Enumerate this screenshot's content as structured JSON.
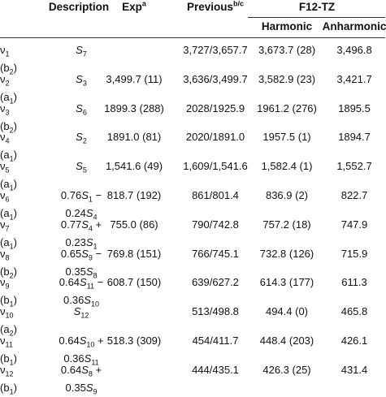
{
  "table": {
    "header": [
      [
        [
          [
            [
              "Description",
              ""
            ]
          ]
        ],
        [
          [
            [
              "Exp",
              ""
            ],
            [
              "a",
              "sup"
            ]
          ]
        ],
        [
          [
            [
              "Previous",
              ""
            ],
            [
              "b/c",
              "sup"
            ]
          ]
        ],
        [
          [
            [
              "F12-TZ",
              ""
            ]
          ]
        ]
      ],
      [
        [
          [
            [
              "Harmonic",
              ""
            ]
          ]
        ],
        [
          [
            [
              "Anharmonic",
              ""
            ]
          ]
        ]
      ]
    ],
    "rows": [
      [
        [
          [
            [
              "ν",
              ""
            ],
            [
              "1",
              "sub"
            ]
          ],
          [
            [
              "(b",
              ""
            ],
            [
              "2",
              "sub"
            ],
            [
              ")",
              ""
            ]
          ]
        ],
        [
          [
            [
              "S",
              "i"
            ],
            [
              "7",
              "sub"
            ]
          ]
        ],
        null,
        "3,727/3,657.7",
        "3,673.7 (28)",
        "3,496.8"
      ],
      [
        [
          [
            [
              "ν",
              ""
            ],
            [
              "2",
              "sub"
            ]
          ],
          [
            [
              "(a",
              ""
            ],
            [
              "1",
              "sub"
            ],
            [
              ")",
              ""
            ]
          ]
        ],
        [
          [
            [
              "S",
              "i"
            ],
            [
              "3",
              "sub"
            ]
          ]
        ],
        "3,499.7 (11)",
        "3,636/3,499.7",
        "3,582.9 (23)",
        "3,421.7"
      ],
      [
        [
          [
            [
              "ν",
              ""
            ],
            [
              "3",
              "sub"
            ]
          ],
          [
            [
              "(b",
              ""
            ],
            [
              "2",
              "sub"
            ],
            [
              ")",
              ""
            ]
          ]
        ],
        [
          [
            [
              "S",
              "i"
            ],
            [
              "6",
              "sub"
            ]
          ]
        ],
        "1899.3 (288)",
        "2028/1925.9",
        "1961.2 (276)",
        "1895.5"
      ],
      [
        [
          [
            [
              "ν",
              ""
            ],
            [
              "4",
              "sub"
            ]
          ],
          [
            [
              "(a",
              ""
            ],
            [
              "1",
              "sub"
            ],
            [
              ")",
              ""
            ]
          ]
        ],
        [
          [
            [
              "S",
              "i"
            ],
            [
              "2",
              "sub"
            ]
          ]
        ],
        "1891.0 (81)",
        "2020/1891.0",
        "1957.5 (1)",
        "1894.7"
      ],
      [
        [
          [
            [
              "ν",
              ""
            ],
            [
              "5",
              "sub"
            ]
          ],
          [
            [
              "(a",
              ""
            ],
            [
              "1",
              "sub"
            ],
            [
              ")",
              ""
            ]
          ]
        ],
        [
          [
            [
              "S",
              "i"
            ],
            [
              "5",
              "sub"
            ]
          ]
        ],
        "1,541.6 (49)",
        "1,609/1,541.6",
        "1,582.4 (1)",
        "1,552.7"
      ],
      [
        [
          [
            [
              "ν",
              ""
            ],
            [
              "6",
              "sub"
            ]
          ],
          [
            [
              "(a",
              ""
            ],
            [
              "1",
              "sub"
            ],
            [
              ")",
              ""
            ]
          ]
        ],
        [
          [
            [
              "0.76",
              ""
            ],
            [
              "S",
              "i"
            ],
            [
              "1",
              "sub"
            ],
            [
              " −",
              ""
            ]
          ],
          [
            [
              "0.24",
              ""
            ],
            [
              "S",
              "i"
            ],
            [
              "4",
              "sub"
            ]
          ]
        ],
        "818.7 (192)",
        "861/801.4",
        "836.9 (2)",
        "822.7"
      ],
      [
        [
          [
            [
              "ν",
              ""
            ],
            [
              "7",
              "sub"
            ]
          ],
          [
            [
              "(a",
              ""
            ],
            [
              "1",
              "sub"
            ],
            [
              ")",
              ""
            ]
          ]
        ],
        [
          [
            [
              "0.77",
              ""
            ],
            [
              "S",
              "i"
            ],
            [
              "4",
              "sub"
            ],
            [
              " +",
              ""
            ]
          ],
          [
            [
              "0.23",
              ""
            ],
            [
              "S",
              "i"
            ],
            [
              "1",
              "sub"
            ]
          ]
        ],
        "755.0 (86)",
        "790/742.8",
        "757.2 (18)",
        "747.9"
      ],
      [
        [
          [
            [
              "ν",
              ""
            ],
            [
              "8",
              "sub"
            ]
          ],
          [
            [
              "(b",
              ""
            ],
            [
              "2",
              "sub"
            ],
            [
              ")",
              ""
            ]
          ]
        ],
        [
          [
            [
              "0.65",
              ""
            ],
            [
              "S",
              "i"
            ],
            [
              "9",
              "sub"
            ],
            [
              " −",
              ""
            ]
          ],
          [
            [
              "0.35",
              ""
            ],
            [
              "S",
              "i"
            ],
            [
              "8",
              "sub"
            ]
          ]
        ],
        "769.8 (151)",
        "766/745.1",
        "732.8 (126)",
        "715.9"
      ],
      [
        [
          [
            [
              "ν",
              ""
            ],
            [
              "9",
              "sub"
            ]
          ],
          [
            [
              "(b",
              ""
            ],
            [
              "1",
              "sub"
            ],
            [
              ")",
              ""
            ]
          ]
        ],
        [
          [
            [
              "0.64",
              ""
            ],
            [
              "S",
              "i"
            ],
            [
              "11",
              "sub"
            ],
            [
              " −",
              ""
            ]
          ],
          [
            [
              "0.36",
              ""
            ],
            [
              "S",
              "i"
            ],
            [
              "10",
              "sub"
            ]
          ]
        ],
        "608.7 (150)",
        "639/627.2",
        "614.3 (177)",
        "611.3"
      ],
      [
        [
          [
            [
              "ν",
              ""
            ],
            [
              "10",
              "sub"
            ]
          ],
          [
            [
              "(a",
              ""
            ],
            [
              "2",
              "sub"
            ],
            [
              ")",
              ""
            ]
          ]
        ],
        [
          [
            [
              "S",
              "i"
            ],
            [
              "12",
              "sub"
            ]
          ]
        ],
        null,
        "513/498.8",
        "494.4 (0)",
        "465.8"
      ],
      [
        [
          [
            [
              "ν",
              ""
            ],
            [
              "11",
              "sub"
            ]
          ],
          [
            [
              "(b",
              ""
            ],
            [
              "1",
              "sub"
            ],
            [
              ")",
              ""
            ]
          ]
        ],
        [
          [
            [
              "0.64",
              ""
            ],
            [
              "S",
              "i"
            ],
            [
              "10",
              "sub"
            ],
            [
              " +",
              ""
            ]
          ],
          [
            [
              "0.36",
              ""
            ],
            [
              "S",
              "i"
            ],
            [
              "11",
              "sub"
            ]
          ]
        ],
        "518.3 (309)",
        "454/411.7",
        "448.4 (203)",
        "426.1"
      ],
      [
        [
          [
            [
              "ν",
              ""
            ],
            [
              "12",
              "sub"
            ]
          ],
          [
            [
              "(b",
              ""
            ],
            [
              "1",
              "sub"
            ],
            [
              ")",
              ""
            ]
          ]
        ],
        [
          [
            [
              "0.64",
              ""
            ],
            [
              "S",
              "i"
            ],
            [
              "8",
              "sub"
            ],
            [
              " +",
              ""
            ]
          ],
          [
            [
              "0.35",
              ""
            ],
            [
              "S",
              "i"
            ],
            [
              "9",
              "sub"
            ]
          ]
        ],
        null,
        "444/435.1",
        "426.3 (25)",
        "431.4"
      ]
    ]
  }
}
